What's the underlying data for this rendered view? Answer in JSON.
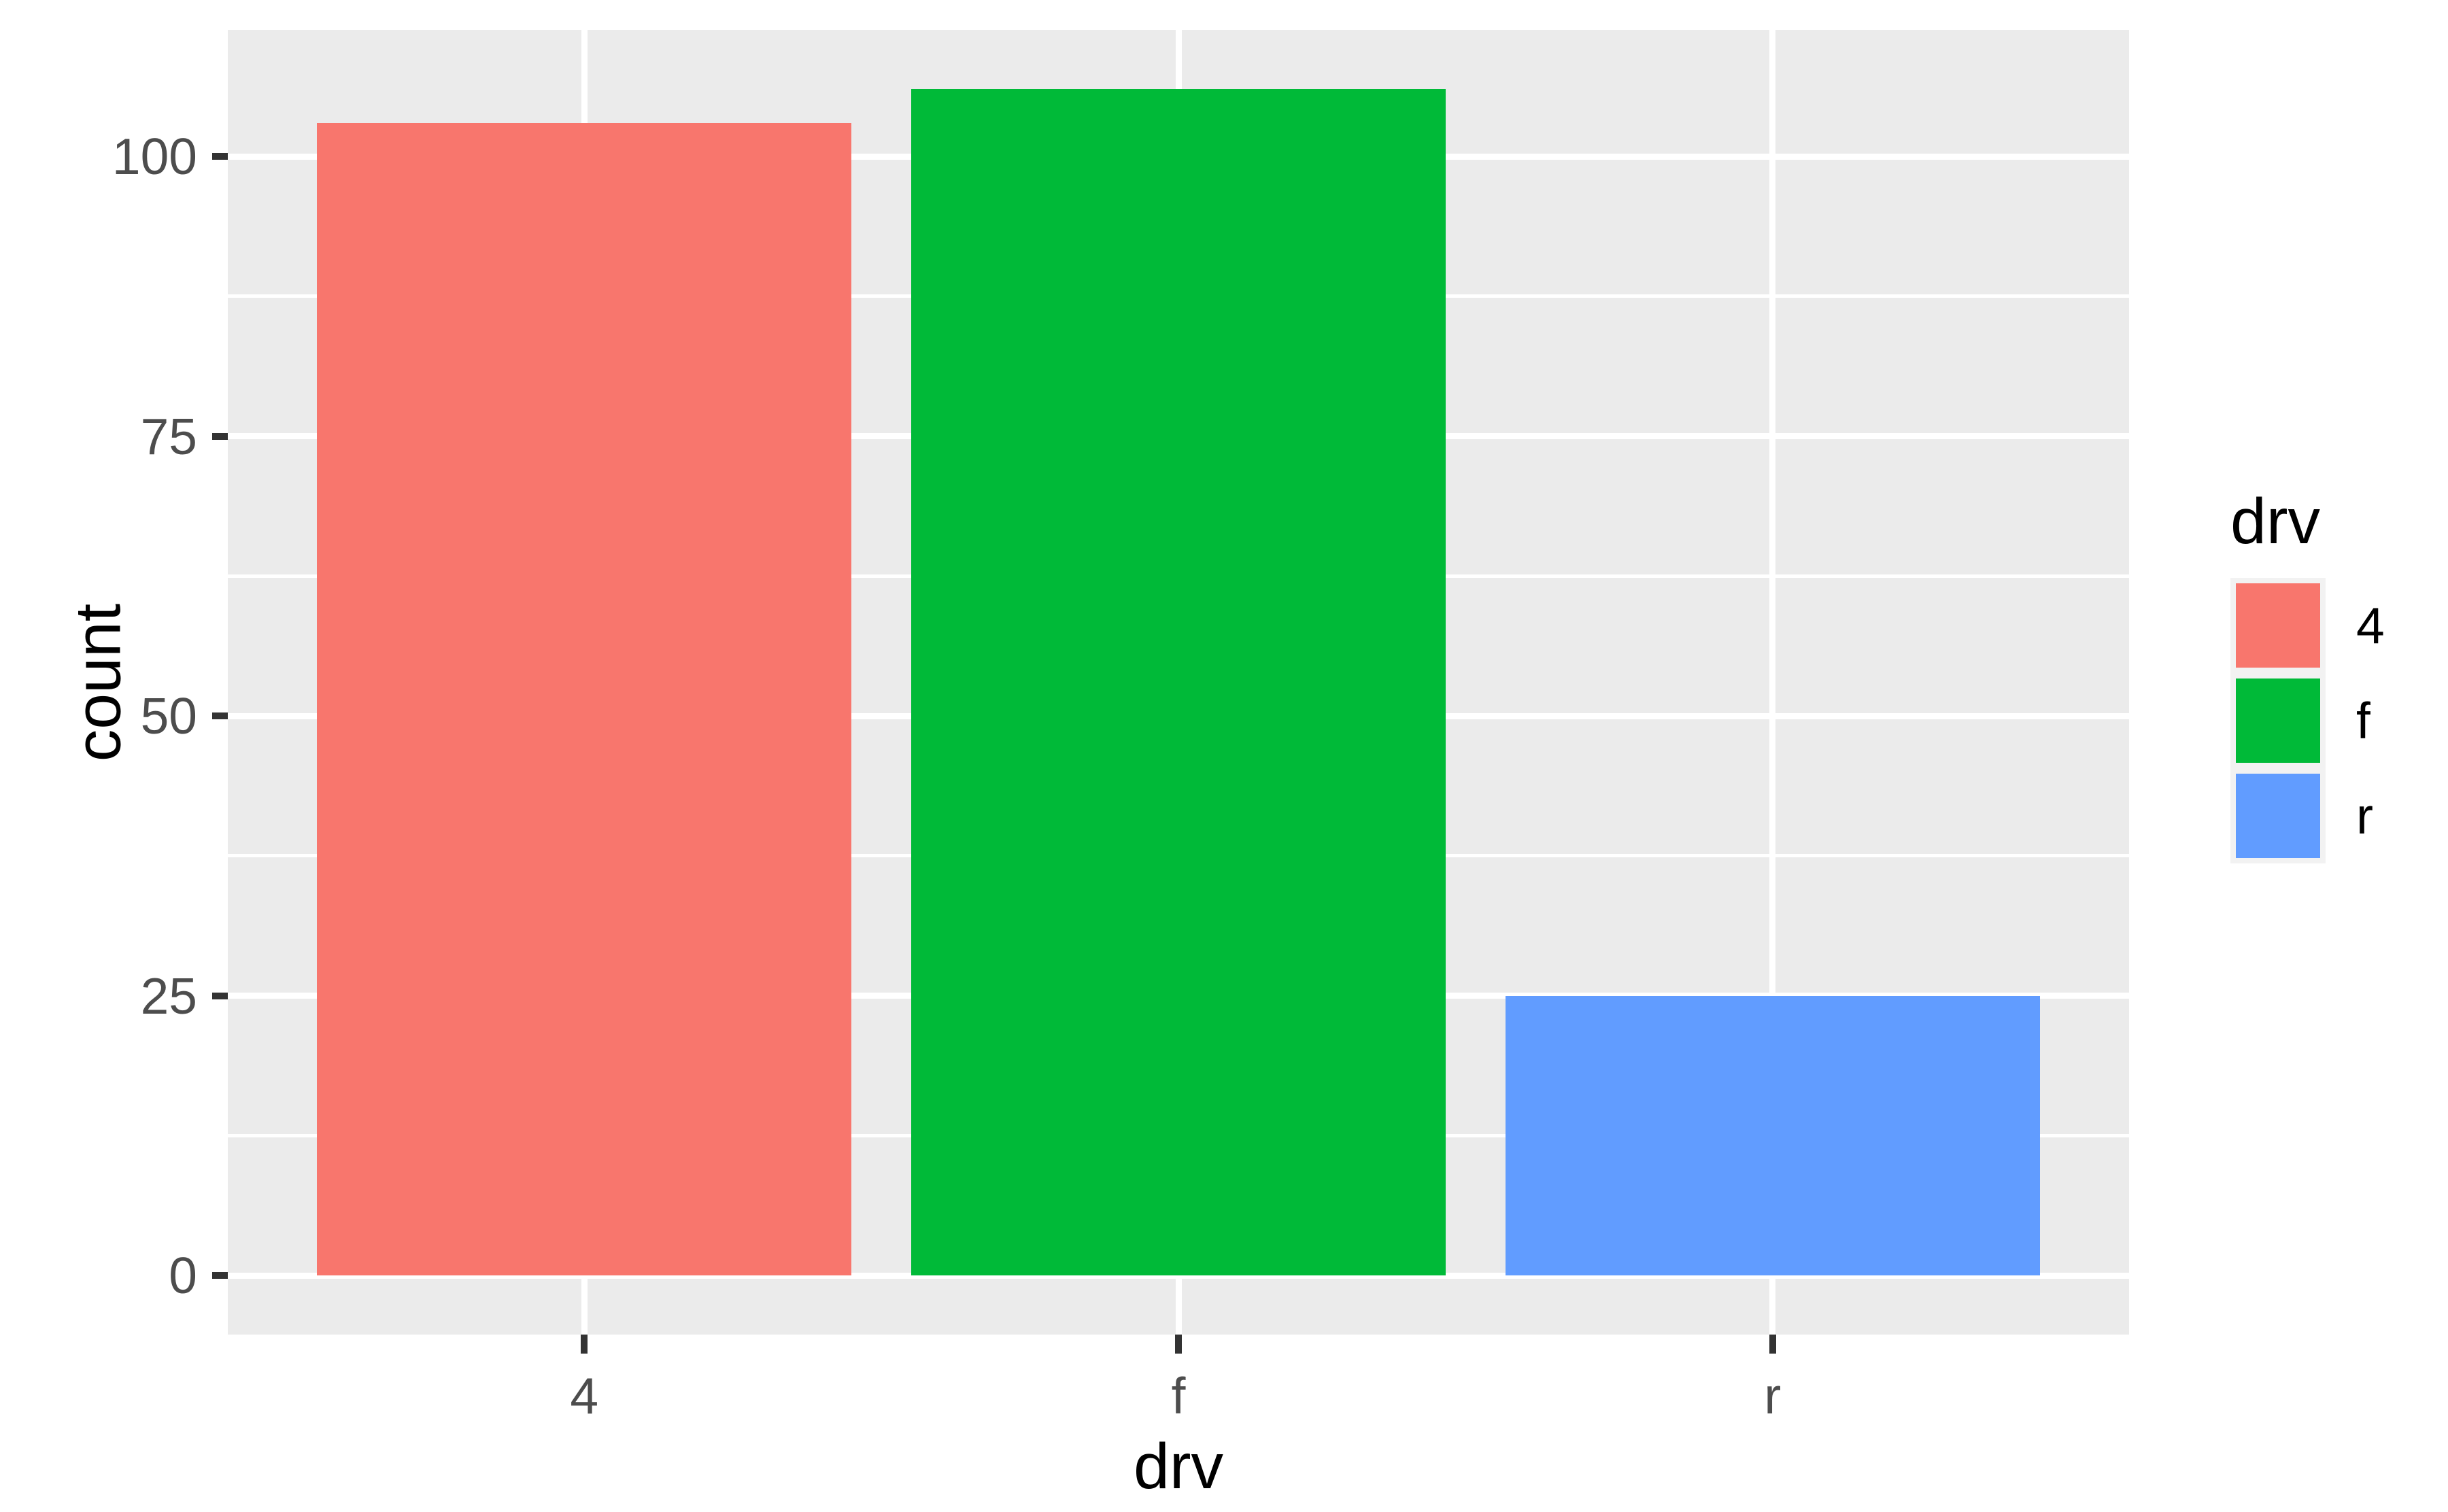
{
  "chart_data": {
    "type": "bar",
    "title": "",
    "xlabel": "drv",
    "ylabel": "count",
    "categories": [
      "4",
      "f",
      "r"
    ],
    "values": [
      103,
      106,
      25
    ],
    "series_colors": [
      "#F8766D",
      "#00BA38",
      "#619CFF"
    ],
    "y_axis": {
      "tick_labels": [
        "0",
        "25",
        "50",
        "75",
        "100"
      ],
      "tick_values": [
        0,
        25,
        50,
        75,
        100
      ],
      "minor_tick_values": [
        12.5,
        37.5,
        62.5,
        87.5
      ],
      "data_range": [
        0,
        106
      ],
      "expanded_range": [
        -5.3,
        111.3
      ]
    },
    "x_axis": {
      "tick_labels": [
        "4",
        "f",
        "r"
      ]
    },
    "legend": {
      "title": "drv",
      "position": "right",
      "entries": [
        {
          "label": "4",
          "color": "#F8766D"
        },
        {
          "label": "f",
          "color": "#00BA38"
        },
        {
          "label": "r",
          "color": "#619CFF"
        }
      ]
    },
    "style": {
      "panel_background": "#EBEBEB",
      "gridline_color": "#FFFFFF",
      "tick_mark_color": "#333333",
      "tick_label_color": "#4D4D4D",
      "title_color": "#000000",
      "legend_key_background": "#F2F2F2",
      "grid": "on"
    }
  }
}
